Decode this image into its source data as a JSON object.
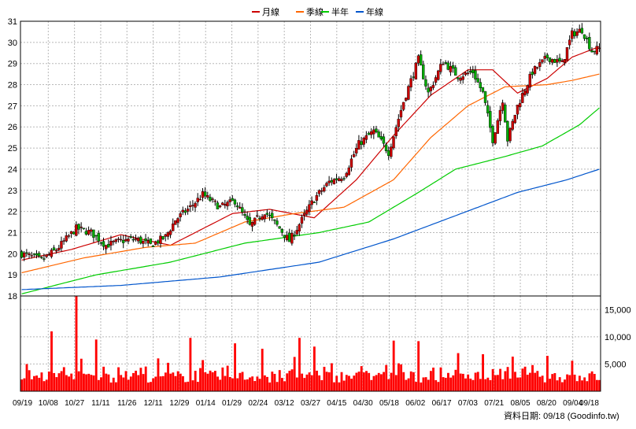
{
  "legend": {
    "items": [
      {
        "label": "月線",
        "color": "#cc0000"
      },
      {
        "label": "季線",
        "color": "#ff6600"
      },
      {
        "label": "半年",
        "color": "#00cc00"
      },
      {
        "label": "年線",
        "color": "#0055cc"
      }
    ]
  },
  "footer": {
    "date_note": "資料日期: 09/18  (Goodinfo.tw)"
  },
  "chart_data": {
    "type": "candlestick",
    "price_axis": {
      "ylim": [
        18,
        31
      ],
      "ticks": [
        18,
        19,
        20,
        21,
        22,
        23,
        24,
        25,
        26,
        27,
        28,
        29,
        30,
        31
      ]
    },
    "volume_axis": {
      "ylim": [
        0,
        17500
      ],
      "ticks": [
        5000,
        10000,
        15000
      ],
      "tick_labels": [
        "5,000",
        "10,000",
        "15,000"
      ]
    },
    "x_tick_labels": [
      "09/19",
      "10/08",
      "10/27",
      "11/11",
      "11/26",
      "12/11",
      "12/29",
      "01/14",
      "01/29",
      "02/24",
      "03/12",
      "03/27",
      "04/15",
      "04/30",
      "05/18",
      "06/02",
      "06/17",
      "07/03",
      "07/21",
      "08/05",
      "08/20",
      "09/04",
      "09/18"
    ],
    "series_colors": {
      "up": "#cc0000",
      "down": "#00aa00",
      "volume": "#ff0000"
    },
    "close_anchors": [
      [
        0,
        20.0
      ],
      [
        8,
        19.7
      ],
      [
        14,
        20.2
      ],
      [
        22,
        21.2
      ],
      [
        28,
        21.0
      ],
      [
        34,
        20.4
      ],
      [
        40,
        20.6
      ],
      [
        46,
        20.7
      ],
      [
        52,
        20.4
      ],
      [
        58,
        20.8
      ],
      [
        62,
        21.6
      ],
      [
        68,
        22.2
      ],
      [
        73,
        22.8
      ],
      [
        80,
        22.2
      ],
      [
        86,
        22.5
      ],
      [
        92,
        21.3
      ],
      [
        98,
        22.0
      ],
      [
        104,
        21.2
      ],
      [
        108,
        20.6
      ],
      [
        112,
        21.4
      ],
      [
        118,
        22.6
      ],
      [
        124,
        23.4
      ],
      [
        130,
        23.7
      ],
      [
        136,
        25.2
      ],
      [
        142,
        25.8
      ],
      [
        148,
        24.8
      ],
      [
        154,
        27.2
      ],
      [
        160,
        29.2
      ],
      [
        164,
        27.6
      ],
      [
        170,
        29.1
      ],
      [
        176,
        28.4
      ],
      [
        182,
        28.6
      ],
      [
        186,
        27.6
      ],
      [
        190,
        25.4
      ],
      [
        194,
        27.3
      ],
      [
        196,
        25.4
      ],
      [
        200,
        27.0
      ],
      [
        206,
        28.6
      ],
      [
        212,
        29.3
      ],
      [
        218,
        29.0
      ],
      [
        222,
        30.4
      ],
      [
        226,
        30.6
      ],
      [
        230,
        29.6
      ],
      [
        233,
        29.7
      ]
    ],
    "moving_averages": [
      {
        "name": "月線",
        "color": "#cc0000",
        "anchors": [
          [
            0,
            19.7
          ],
          [
            20,
            20.2
          ],
          [
            40,
            20.9
          ],
          [
            60,
            20.4
          ],
          [
            70,
            21.0
          ],
          [
            85,
            21.9
          ],
          [
            100,
            22.1
          ],
          [
            118,
            21.7
          ],
          [
            135,
            23.5
          ],
          [
            150,
            25.6
          ],
          [
            165,
            27.5
          ],
          [
            180,
            28.7
          ],
          [
            190,
            28.7
          ],
          [
            200,
            27.6
          ],
          [
            212,
            28.3
          ],
          [
            222,
            29.3
          ],
          [
            233,
            29.8
          ]
        ]
      },
      {
        "name": "季線",
        "color": "#ff6600",
        "anchors": [
          [
            0,
            19.1
          ],
          [
            25,
            19.8
          ],
          [
            50,
            20.3
          ],
          [
            70,
            20.5
          ],
          [
            90,
            21.5
          ],
          [
            110,
            21.9
          ],
          [
            130,
            22.2
          ],
          [
            150,
            23.5
          ],
          [
            165,
            25.5
          ],
          [
            180,
            27.0
          ],
          [
            195,
            27.9
          ],
          [
            212,
            28.0
          ],
          [
            222,
            28.2
          ],
          [
            233,
            28.5
          ]
        ]
      },
      {
        "name": "半年",
        "color": "#00cc00",
        "anchors": [
          [
            0,
            18.1
          ],
          [
            30,
            19.0
          ],
          [
            60,
            19.6
          ],
          [
            90,
            20.5
          ],
          [
            120,
            21.0
          ],
          [
            140,
            21.5
          ],
          [
            160,
            22.9
          ],
          [
            175,
            24.0
          ],
          [
            195,
            24.6
          ],
          [
            210,
            25.1
          ],
          [
            225,
            26.1
          ],
          [
            233,
            26.9
          ]
        ]
      },
      {
        "name": "年線",
        "color": "#0055cc",
        "anchors": [
          [
            0,
            18.3
          ],
          [
            40,
            18.5
          ],
          [
            80,
            18.9
          ],
          [
            120,
            19.6
          ],
          [
            150,
            20.7
          ],
          [
            175,
            21.8
          ],
          [
            200,
            22.9
          ],
          [
            220,
            23.5
          ],
          [
            233,
            24.0
          ]
        ]
      }
    ]
  }
}
